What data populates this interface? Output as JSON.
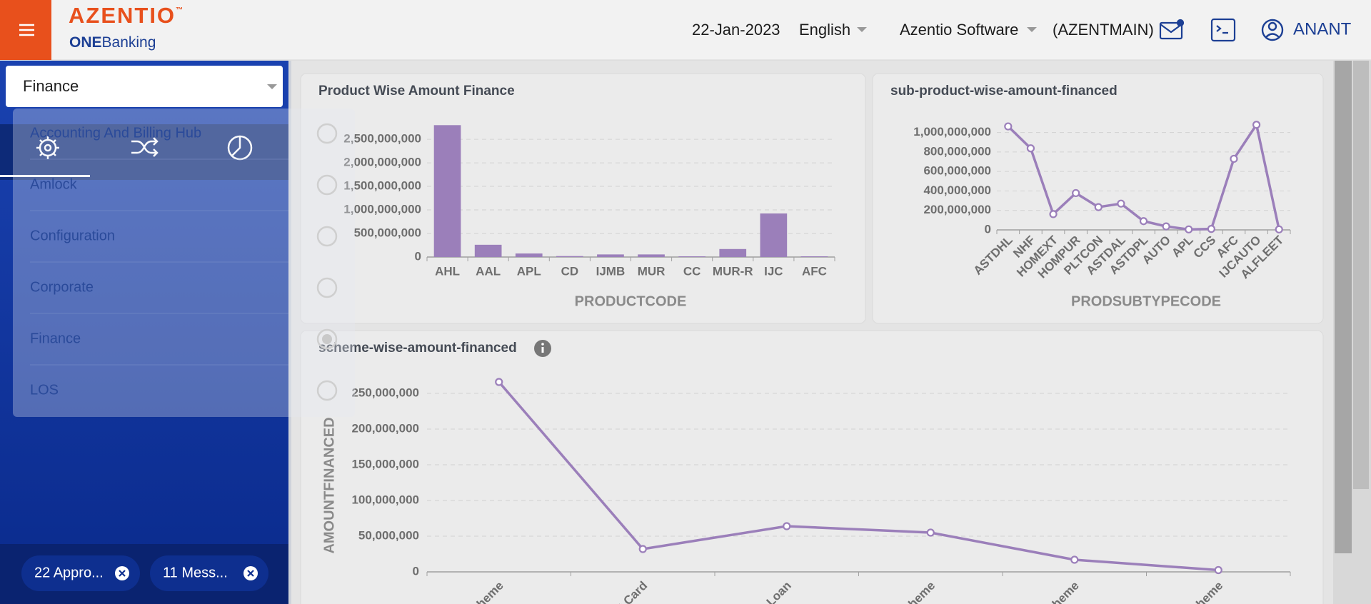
{
  "header": {
    "logo": "AZENTIO",
    "logo_mark": "™",
    "logo_sub_bold": "ONE",
    "logo_sub": "Banking",
    "date": "22-Jan-2023",
    "language": "English",
    "company": "Azentio Software",
    "branch": "(AZENTMAIN)",
    "user": "ANANT"
  },
  "sidebar": {
    "module_select": "Finance",
    "menu": [
      "Accounting And Billing Hub",
      "Amlock",
      "Configuration",
      "Corporate",
      "Finance",
      "LOS"
    ],
    "chips": [
      "22 Appro...",
      "11 Mess..."
    ]
  },
  "chart_data": [
    {
      "type": "bar",
      "title": "Product Wise Amount Finance",
      "x_label": "PRODUCTCODE",
      "color": "#9b7fba",
      "grid": true,
      "categories": [
        "AHL",
        "AAL",
        "APL",
        "CD",
        "IJMB",
        "MUR",
        "CC",
        "MUR-R",
        "IJC",
        "AFC"
      ],
      "values": [
        2800000000,
        260000000,
        75000000,
        20000000,
        55000000,
        55000000,
        15000000,
        170000000,
        925000000,
        15000000
      ],
      "ylim": [
        0,
        2850000000
      ],
      "yticks": [
        0,
        {
          "value": 500000000,
          "label": "500,000,000"
        },
        {
          "value": 1000000000,
          "label": "1,000,000,000"
        },
        {
          "value": 1500000000,
          "label": "1,500,000,000"
        },
        {
          "value": 2000000000,
          "label": "2,000,000,000"
        },
        {
          "value": 2500000000,
          "label": "2,500,000,000"
        }
      ]
    },
    {
      "type": "line",
      "title": "sub-product-wise-amount-financed",
      "x_label": "PRODSUBTYPECODE",
      "color": "#9b7fba",
      "grid": true,
      "categories": [
        "ASTDHL",
        "NHF",
        "HOMEXT",
        "HOMPUR",
        "PLTCON",
        "ASTDAL",
        "ASTDPL",
        "AUTO",
        "APL",
        "CCS",
        "AFC",
        "IJCAUTO",
        "ALFLEET"
      ],
      "values": [
        1063000000,
        838000000,
        162000000,
        378000000,
        234000000,
        270000000,
        90000000,
        36000000,
        5000000,
        10000000,
        730000000,
        1080000000,
        5000000
      ],
      "ylim": [
        0,
        1100000000
      ],
      "yticks": [
        0,
        {
          "value": 200000000,
          "label": "200,000,000"
        },
        {
          "value": 400000000,
          "label": "400,000,000"
        },
        {
          "value": 600000000,
          "label": "600,000,000"
        },
        {
          "value": 800000000,
          "label": "800,000,000"
        },
        {
          "value": 1000000000,
          "label": "1,000,000,000"
        }
      ]
    },
    {
      "type": "line",
      "title": "scheme-wise-amount-financed",
      "y_label": "AMOUNTFINANCED",
      "color": "#9b7fba",
      "grid": true,
      "categories": [
        "cheme",
        "it Card",
        "e Loan",
        "scheme",
        "cheme",
        "cheme"
      ],
      "values": [
        266000000,
        32000000,
        64000000,
        55000000,
        17000000,
        2500000
      ],
      "ylim": [
        0,
        280000000
      ],
      "yticks": [
        0,
        {
          "value": 50000000,
          "label": "50,000,000"
        },
        {
          "value": 100000000,
          "label": "100,000,000"
        },
        {
          "value": 150000000,
          "label": "150,000,000"
        },
        {
          "value": 200000000,
          "label": "200,000,000"
        },
        {
          "value": 250000000,
          "label": "250,000,000"
        }
      ]
    }
  ]
}
